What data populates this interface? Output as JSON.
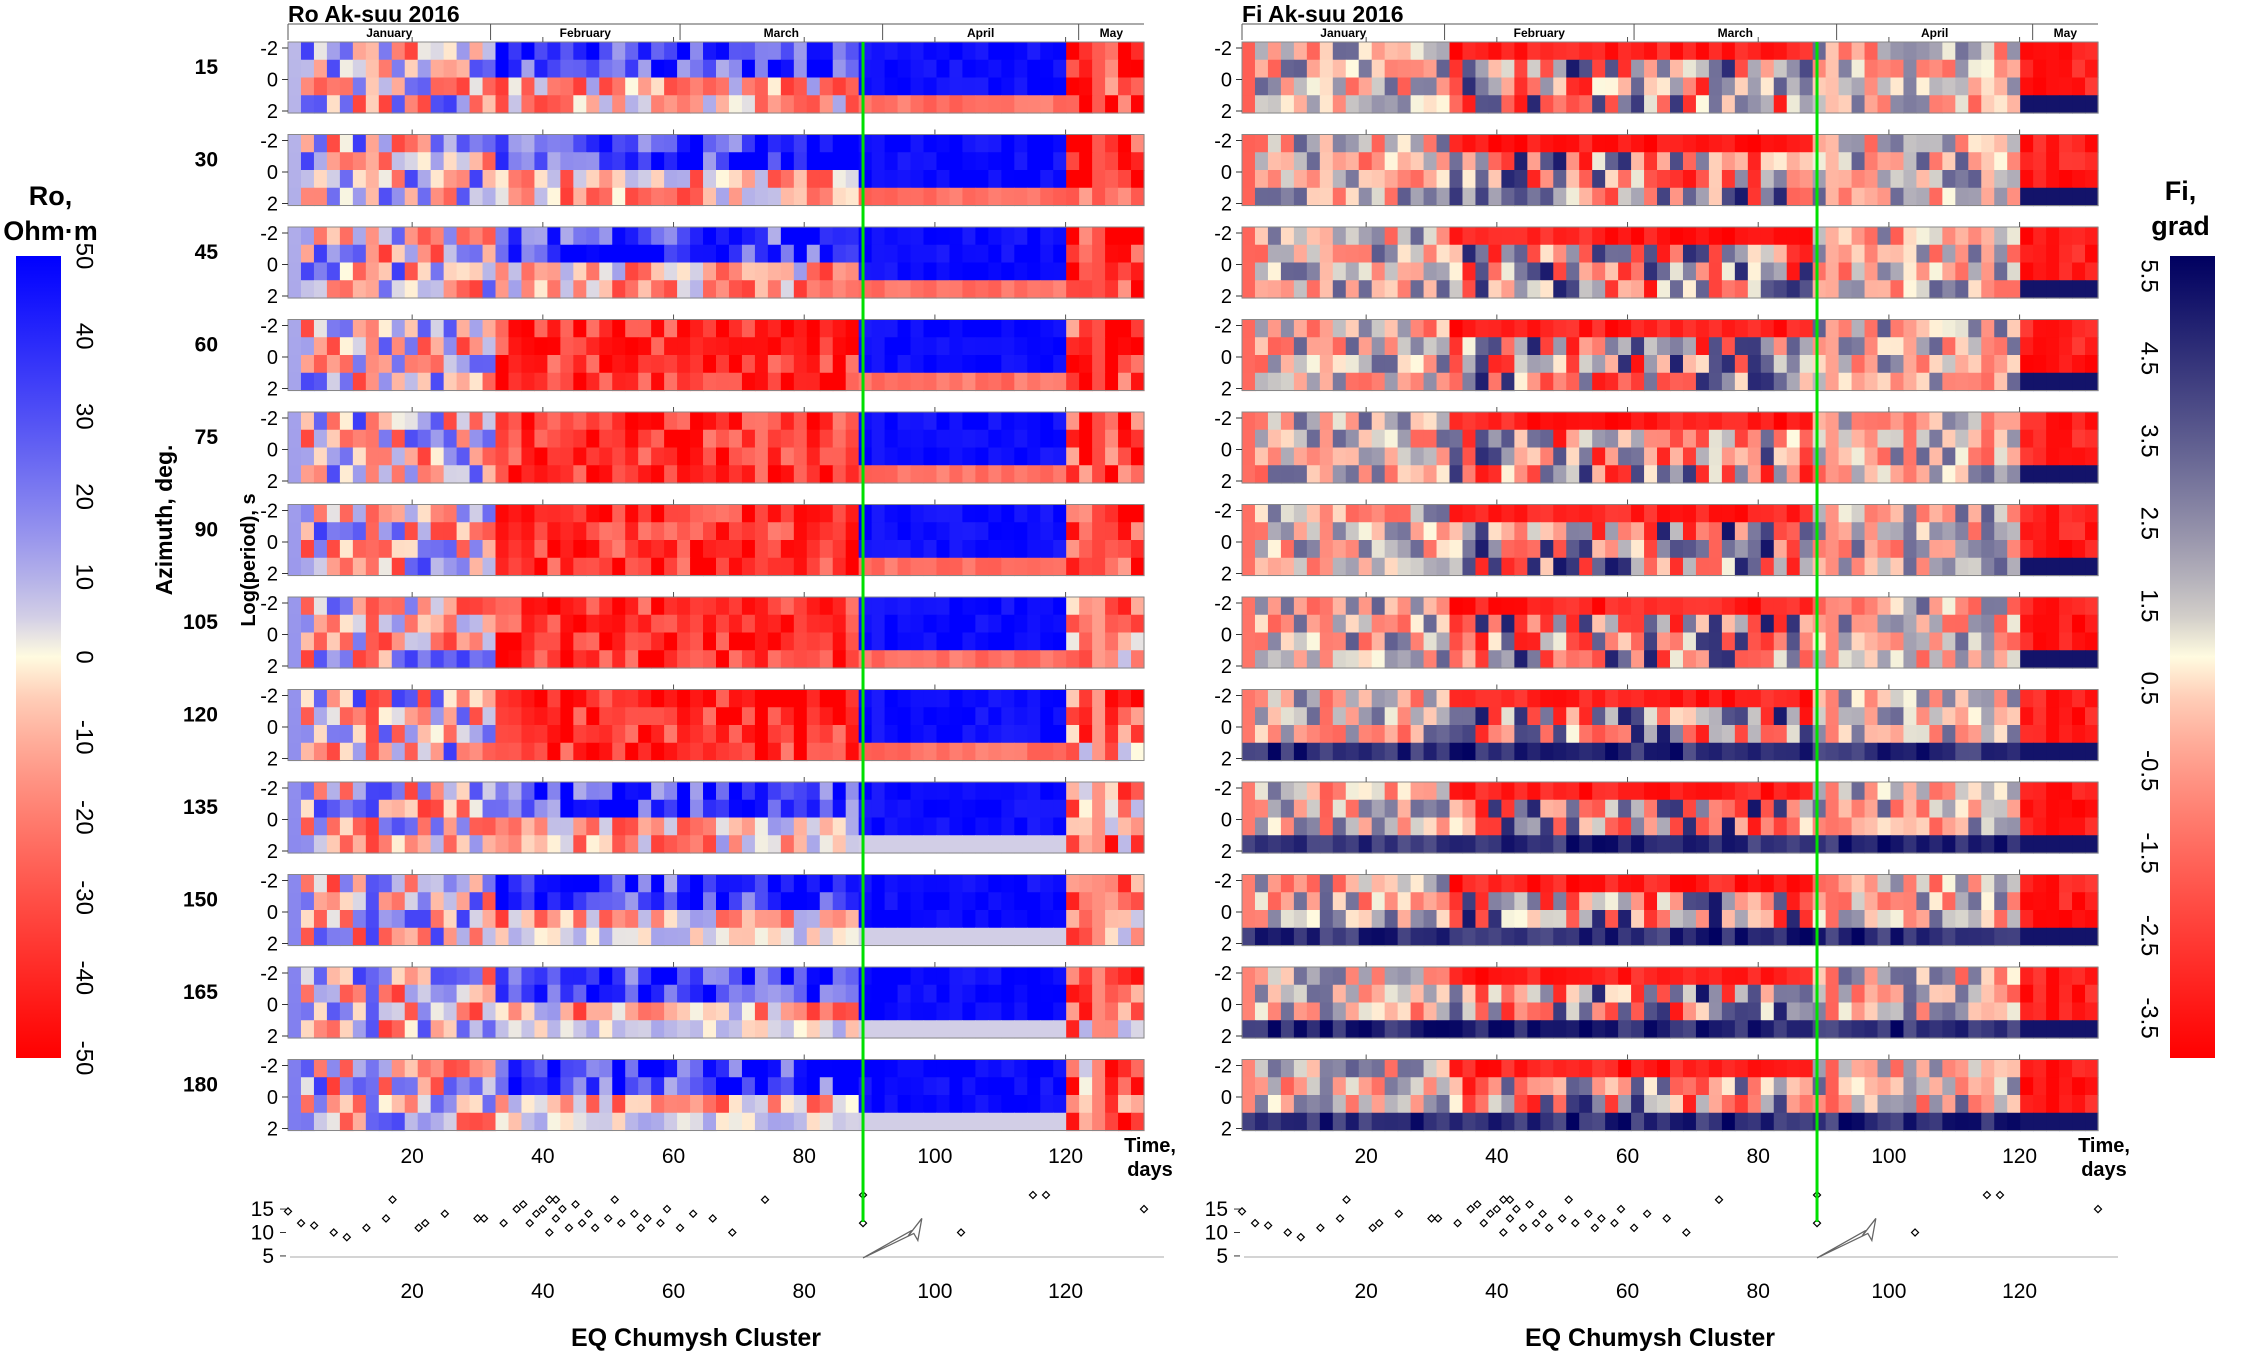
{
  "chart_data": {
    "type": "heatmap",
    "time_axis": {
      "label": "Time, days",
      "ticks": [
        20,
        40,
        60,
        80,
        100,
        120
      ],
      "range": [
        1,
        132
      ]
    },
    "months": [
      {
        "label": "January",
        "start": 1,
        "end": 32
      },
      {
        "label": "February",
        "start": 32,
        "end": 61
      },
      {
        "label": "March",
        "start": 61,
        "end": 92
      },
      {
        "label": "April",
        "start": 92,
        "end": 122
      },
      {
        "label": "May",
        "start": 122,
        "end": 132
      }
    ],
    "azimuths": [
      15,
      30,
      45,
      60,
      75,
      90,
      105,
      120,
      135,
      150,
      165,
      180
    ],
    "azimuth_label": "Azimuth, deg.",
    "period_label": "Log(period), s",
    "period_ticks": [
      -2,
      0,
      2
    ],
    "panels": [
      {
        "title": "Ro Ak-suu 2016",
        "colorbar": {
          "label_line1": "Ro,",
          "label_line2": "Ohm·m",
          "ticks": [
            50,
            40,
            30,
            20,
            10,
            0,
            -10,
            -20,
            -30,
            -40,
            -50
          ],
          "high_color": "#0000ff",
          "mid_color": "#fffbe0",
          "low_color": "#ff0000"
        },
        "event_marker_day": 89
      },
      {
        "title": "Fi Ak-suu 2016",
        "colorbar": {
          "label_line1": "Fi,",
          "label_line2": "grad",
          "ticks": [
            5.5,
            4.5,
            3.5,
            2.5,
            1.5,
            0.5,
            -0.5,
            -1.5,
            -2.5,
            -3.5
          ],
          "high_color": "#000060",
          "mid_color": "#fffbe0",
          "low_color": "#ff0000"
        },
        "event_marker_day": 89
      }
    ],
    "earthquakes": {
      "label": "EQ Chumysh Cluster",
      "y_ticks": [
        5,
        10,
        15
      ],
      "events": [
        [
          1,
          14.5
        ],
        [
          3,
          12
        ],
        [
          5,
          11.5
        ],
        [
          8,
          10
        ],
        [
          10,
          9
        ],
        [
          13,
          11
        ],
        [
          16,
          13
        ],
        [
          17,
          17
        ],
        [
          21,
          11
        ],
        [
          22,
          12
        ],
        [
          25,
          14
        ],
        [
          30,
          13
        ],
        [
          31,
          13
        ],
        [
          34,
          12
        ],
        [
          36,
          15
        ],
        [
          37,
          16
        ],
        [
          38,
          12
        ],
        [
          39,
          14
        ],
        [
          40,
          15
        ],
        [
          41,
          10
        ],
        [
          41,
          17
        ],
        [
          42,
          17
        ],
        [
          42,
          13
        ],
        [
          43,
          15
        ],
        [
          44,
          11
        ],
        [
          45,
          16
        ],
        [
          46,
          12
        ],
        [
          47,
          14
        ],
        [
          48,
          11
        ],
        [
          50,
          13
        ],
        [
          51,
          17
        ],
        [
          52,
          12
        ],
        [
          54,
          14
        ],
        [
          55,
          11
        ],
        [
          56,
          13
        ],
        [
          58,
          12
        ],
        [
          59,
          15
        ],
        [
          61,
          11
        ],
        [
          63,
          14
        ],
        [
          66,
          13
        ],
        [
          69,
          10
        ],
        [
          74,
          17
        ],
        [
          89,
          12
        ],
        [
          89,
          18
        ],
        [
          104,
          10
        ],
        [
          115,
          18
        ],
        [
          117,
          18
        ],
        [
          132,
          15
        ]
      ]
    },
    "event_arrow": {
      "from_day": 89,
      "to_day": 98
    }
  }
}
